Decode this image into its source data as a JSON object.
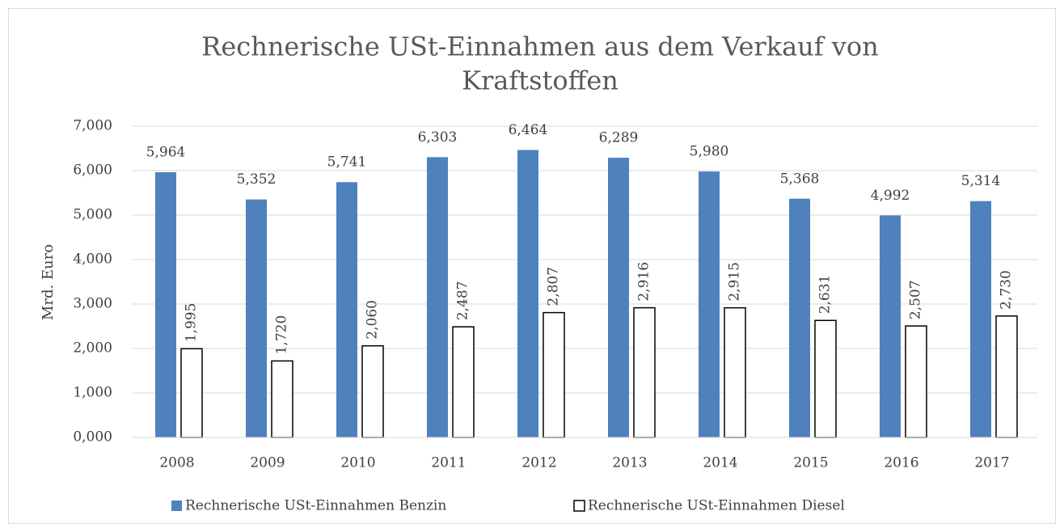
{
  "chart_data": {
    "type": "bar",
    "title": "Rechnerische USt-Einnahmen aus dem Verkauf von Kraftstoffen",
    "title_lines": [
      "Rechnerische USt-Einnahmen aus dem Verkauf von",
      "Kraftstoffen"
    ],
    "ylabel": "Mrd. Euro",
    "categories": [
      "2008",
      "2009",
      "2010",
      "2011",
      "2012",
      "2013",
      "2014",
      "2015",
      "2016",
      "2017"
    ],
    "series": [
      {
        "name": "Rechnerische USt-Einnahmen Benzin",
        "color": "#4f81bd",
        "values": [
          5.964,
          5.352,
          5.741,
          6.303,
          6.464,
          6.289,
          5.98,
          5.368,
          4.992,
          5.314
        ],
        "value_labels": [
          "5,964",
          "5,352",
          "5,741",
          "6,303",
          "6,464",
          "6,289",
          "5,980",
          "5,368",
          "4,992",
          "5,314"
        ]
      },
      {
        "name": "Rechnerische USt-Einnahmen Diesel",
        "color": "#ffffff",
        "values": [
          1.995,
          1.72,
          2.06,
          2.487,
          2.807,
          2.916,
          2.915,
          2.631,
          2.507,
          2.73
        ],
        "value_labels": [
          "1,995",
          "1,720",
          "2,060",
          "2,487",
          "2,807",
          "2,916",
          "2,915",
          "2,631",
          "2,507",
          "2,730"
        ]
      }
    ],
    "ylim": [
      0,
      7
    ],
    "yticks": [
      {
        "value": 0,
        "label": "0,000"
      },
      {
        "value": 1,
        "label": "1,000"
      },
      {
        "value": 2,
        "label": "2,000"
      },
      {
        "value": 3,
        "label": "3,000"
      },
      {
        "value": 4,
        "label": "4,000"
      },
      {
        "value": 5,
        "label": "5,000"
      },
      {
        "value": 6,
        "label": "6,000"
      },
      {
        "value": 7,
        "label": "7,000"
      }
    ],
    "grid": true,
    "legend": "bottom"
  }
}
